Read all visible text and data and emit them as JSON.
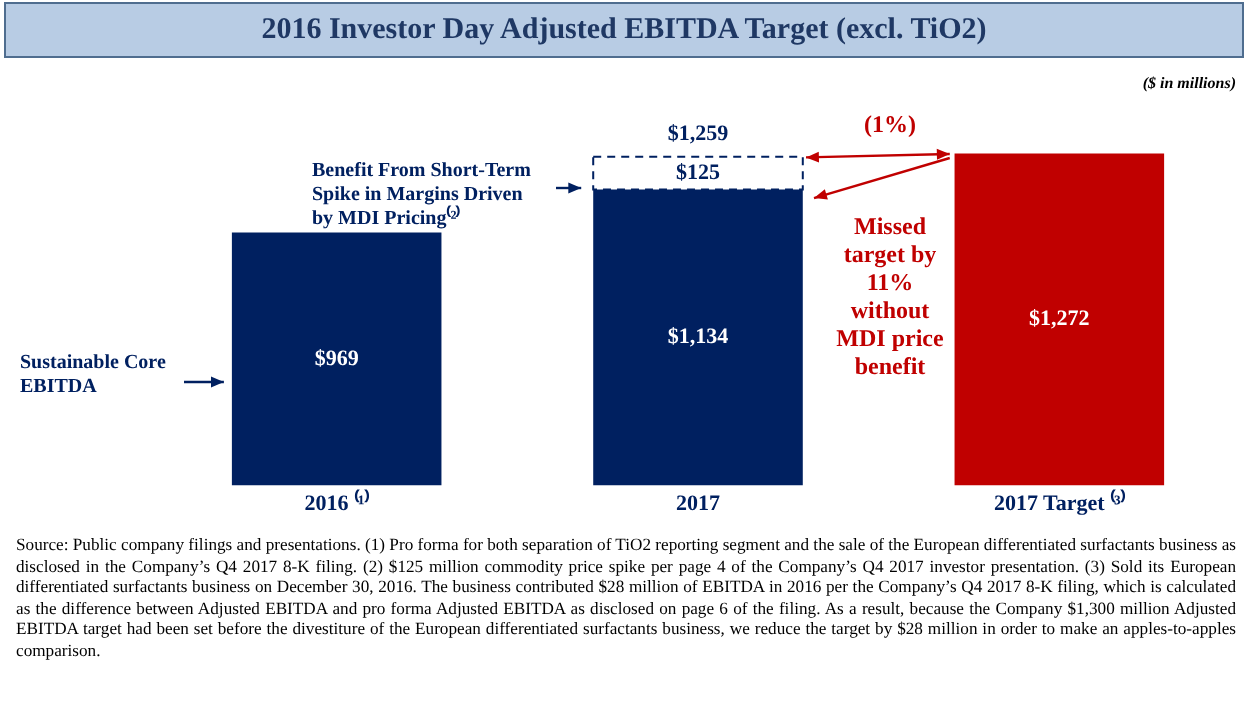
{
  "chart_data": {
    "type": "bar",
    "stacked": true,
    "title": "2016 Investor Day Adjusted EBITDA Target (excl. TiO2)",
    "categories": [
      "2016 ⁽¹⁾",
      "2017",
      "2017 Target ⁽³⁾"
    ],
    "series": [
      {
        "colors": [
          "#002060",
          "#002060",
          "#c00000"
        ],
        "values": [
          969,
          1134,
          1272
        ],
        "value_labels": [
          "$969",
          "$1,134",
          "$1,272"
        ]
      },
      {
        "color": "#ffffff",
        "line_style": "dashed",
        "values": [
          null,
          125,
          null
        ],
        "value_labels": [
          null,
          "$125",
          null
        ]
      }
    ],
    "totals": [
      null,
      "$1,259",
      null
    ],
    "legend": false,
    "grid": false,
    "annotations": [
      "($ in millions)",
      "Sustainable Core EBITDA",
      "Benefit From Short-Term Spike in Margins Driven by MDI Pricing⁽²⁾",
      "(1%)",
      "Missed target by 11% without MDI price benefit",
      "Source: Public company filings and presentations. (1) Pro forma for both separation of TiO2 reporting segment and the sale of the European differentiated surfactants business as disclosed in the Company’s Q4 2017 8-K filing. (2) $125 million commodity price spike per page 4 of the Company’s Q4 2017 investor presentation. (3) Sold its European differentiated surfactants business on December 30, 2016. The business contributed $28 million of EBITDA in 2016 per the Company’s Q4 2017 8-K filing, which is calculated as the difference between Adjusted EBITDA and pro forma Adjusted EBITDA as disclosed on page 6 of the filing. As a result, because the Company $1,300 million Adjusted EBITDA target had been set before the divestiture of the European differentiated surfactants business, we reduce the target by $28 million in order to make an apples-to-apples comparison."
    ]
  }
}
